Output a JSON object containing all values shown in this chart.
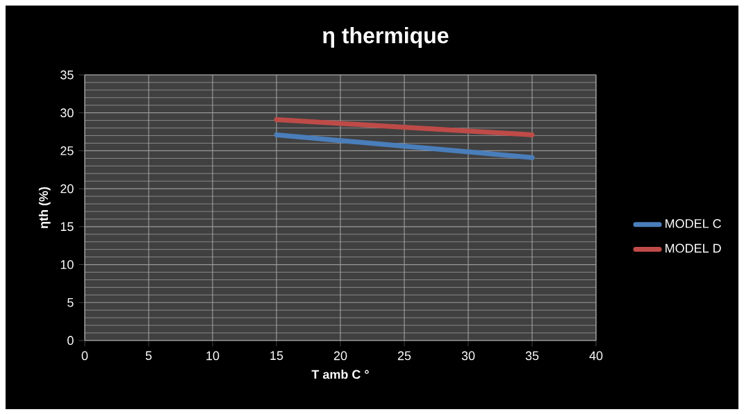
{
  "chart_data": {
    "type": "line",
    "title": "η  thermique",
    "xlabel": "T amb C °",
    "ylabel": "ηth (%)",
    "x": [
      15,
      25,
      35
    ],
    "series": [
      {
        "name": "MODEL  C",
        "color": "#4a7ebb",
        "values": [
          27.1,
          25.6,
          24.1
        ]
      },
      {
        "name": "MODEL D",
        "color": "#be4b48",
        "values": [
          29.1,
          28.1,
          27.1
        ]
      }
    ],
    "xlim": [
      0,
      40
    ],
    "xticks": [
      0,
      5,
      10,
      15,
      20,
      25,
      30,
      35,
      40
    ],
    "ylim": [
      0,
      35
    ],
    "yticks": [
      0,
      5,
      10,
      15,
      20,
      25,
      30,
      35
    ],
    "grid": true,
    "legend": "right",
    "marker": "none",
    "line_style": "solid"
  }
}
